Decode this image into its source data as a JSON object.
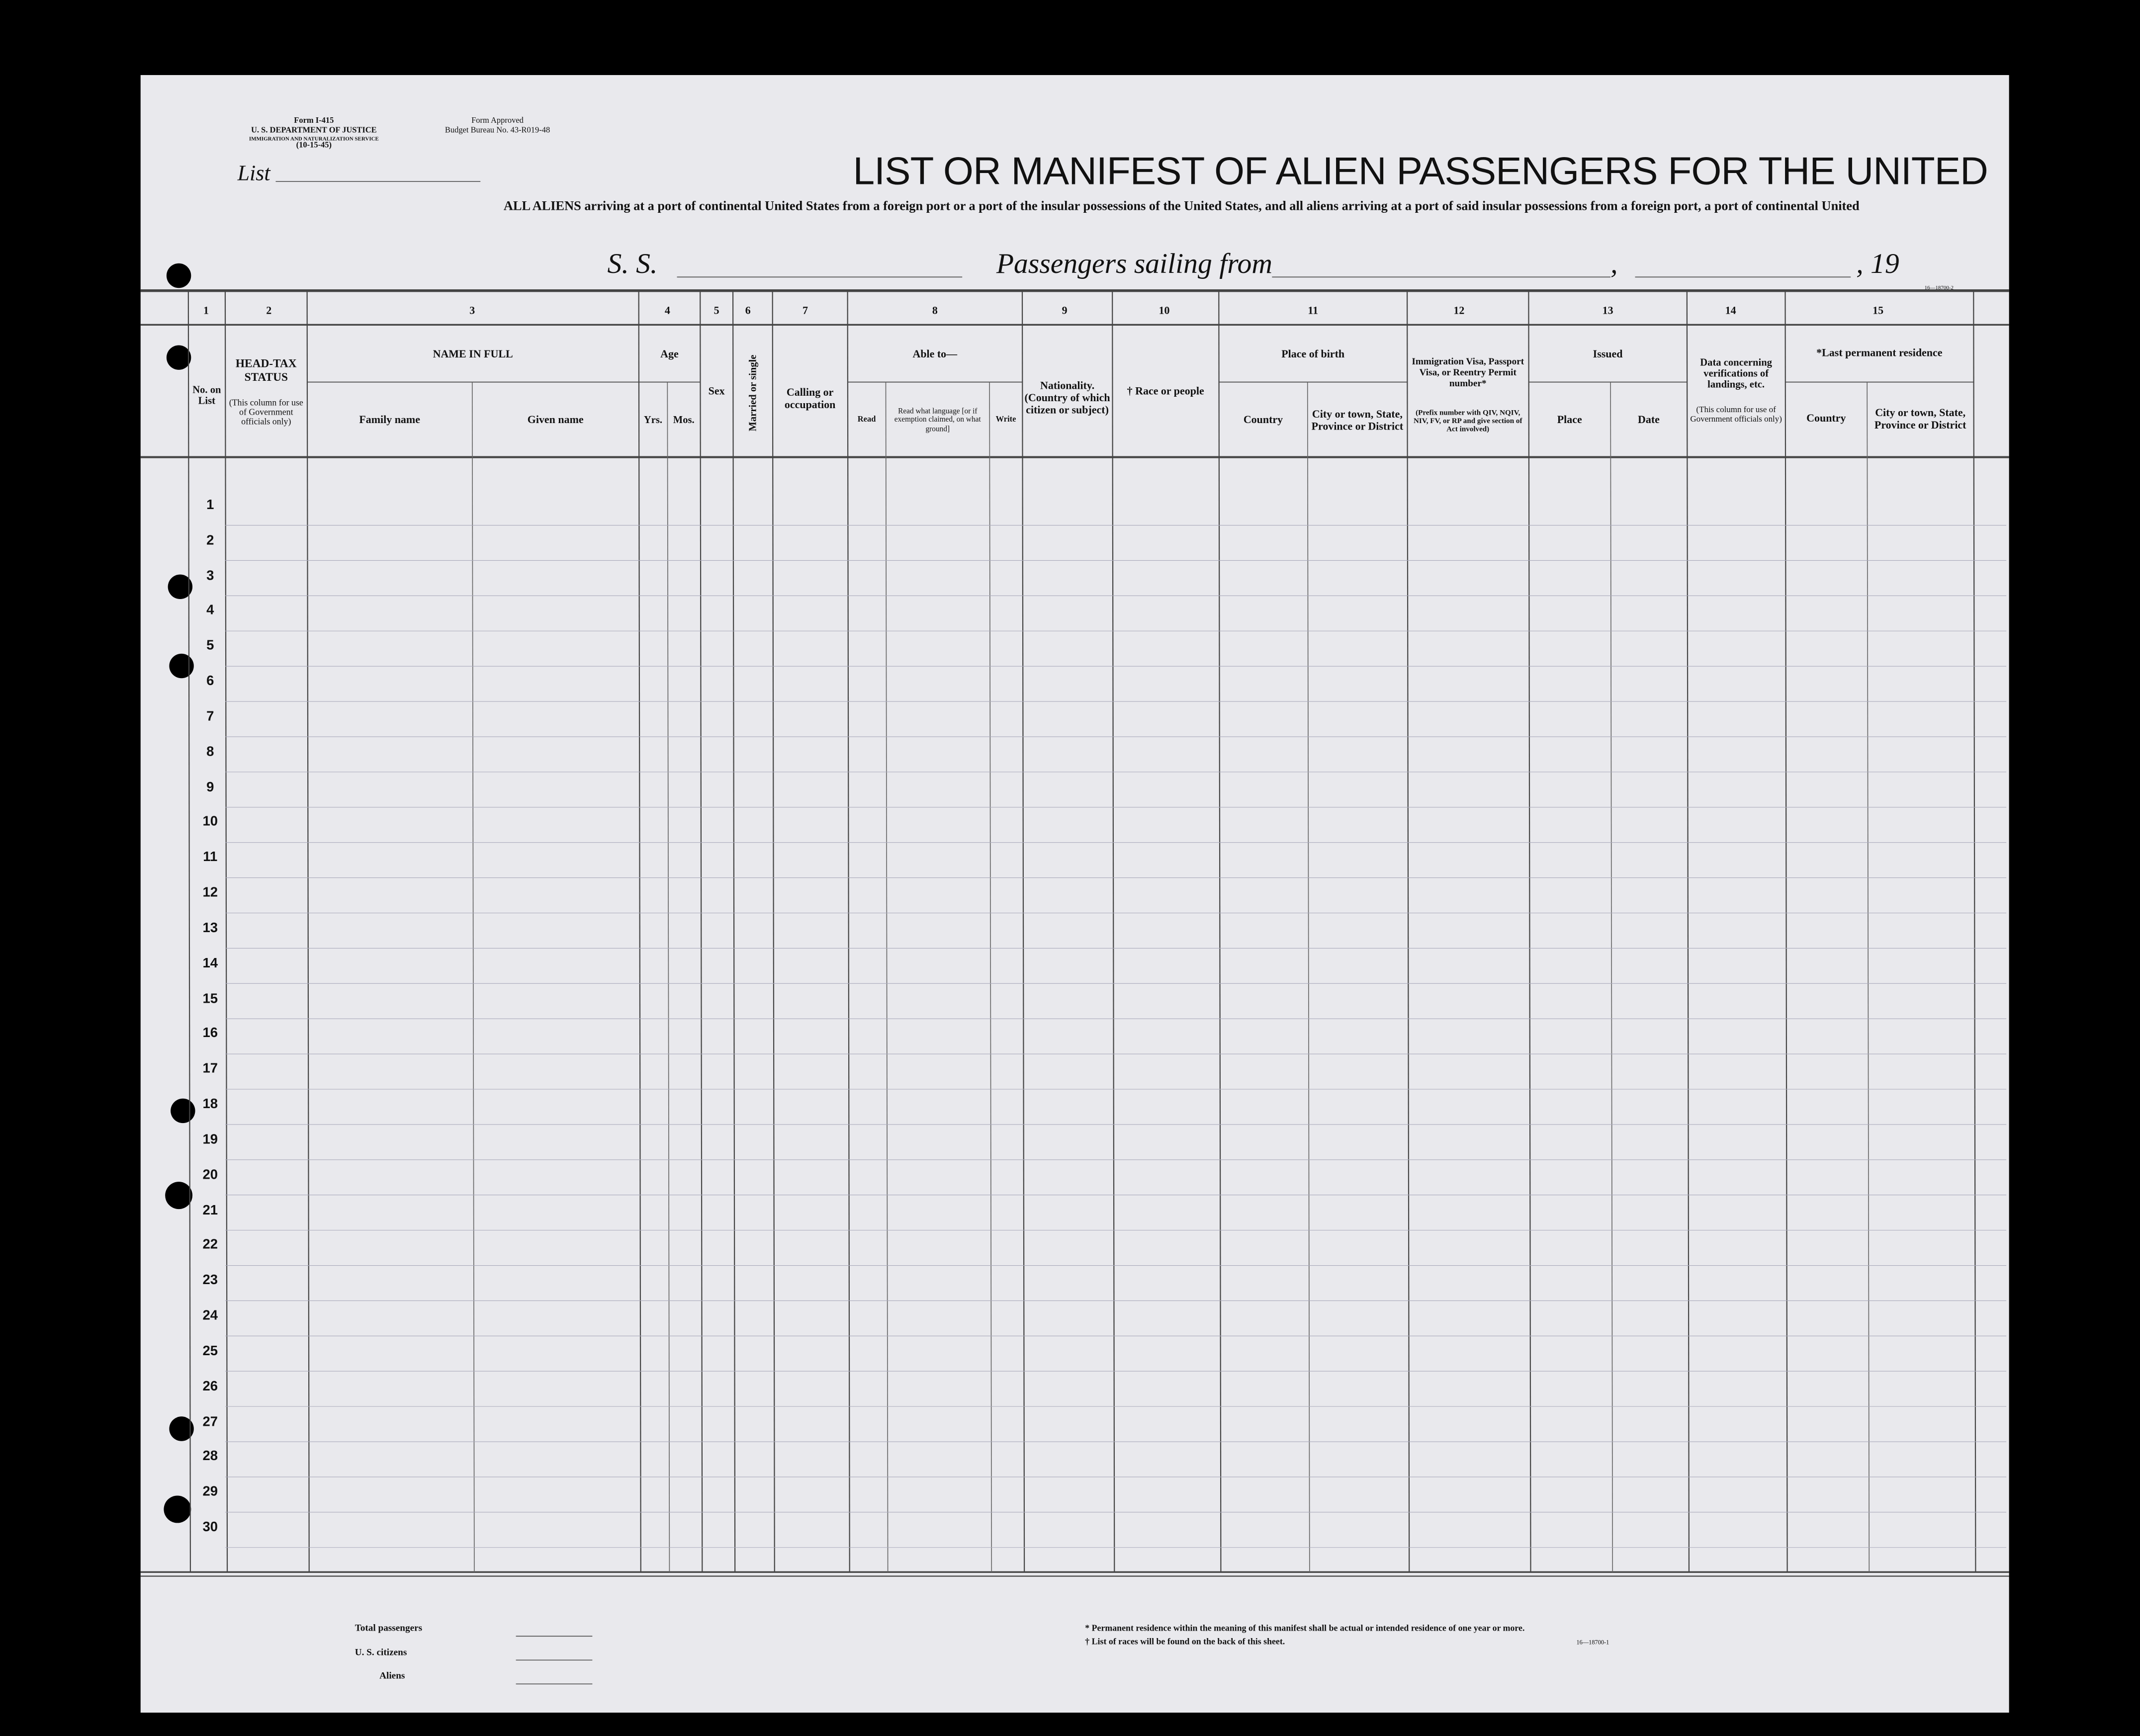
{
  "form": {
    "number": "Form I-415",
    "department": "U. S. DEPARTMENT OF JUSTICE",
    "service": "IMMIGRATION AND NATURALIZATION SERVICE",
    "date": "(10-15-45)",
    "approval": "Form Approved",
    "budget": "Budget Bureau No. 43-R019-48"
  },
  "list_label": "List",
  "title": "LIST OR MANIFEST OF ALIEN PASSENGERS FOR THE UNITED",
  "subtitle": "ALL ALIENS arriving at a port of continental United States from a foreign port or a port of the insular possessions of the United States, and all aliens arriving at a port of said insular possessions from a foreign port, a port of continental United",
  "ship_line": {
    "ss": "S. S.",
    "sailing": "Passengers sailing from",
    "comma": ",",
    "year": ", 19"
  },
  "print_code": "16—18700-2",
  "column_numbers": [
    "1",
    "2",
    "3",
    "4",
    "5",
    "6",
    "7",
    "8",
    "9",
    "10",
    "11",
    "12",
    "13",
    "14",
    "15"
  ],
  "headers": {
    "no": "No. on List",
    "head_tax": "HEAD-TAX STATUS",
    "head_tax_note": "(This column for use of Government officials only)",
    "name": "NAME IN FULL",
    "family": "Family name",
    "given": "Given name",
    "age": "Age",
    "yrs": "Yrs.",
    "mos": "Mos.",
    "sex": "Sex",
    "married": "Married or single",
    "calling": "Calling or occupation",
    "able": "Able to—",
    "read": "Read",
    "read_lang": "Read what language [or if exemption claimed, on what ground]",
    "write": "Write",
    "nationality": "Nationality. (Country of which citizen or subject)",
    "race": "† Race or people",
    "birth": "Place of birth",
    "country": "Country",
    "city": "City or town, State, Province or District",
    "visa": "Immigration Visa, Passport Visa, or Reentry Permit number*",
    "visa_note": "(Prefix number with QIV, NQIV, NIV, FV, or RP and give section of Act involved)",
    "issued": "Issued",
    "place": "Place",
    "date": "Date",
    "data": "Data concerning verifications of landings, etc.",
    "data_note": "(This column for use of Government officials only)",
    "residence": "*Last permanent residence",
    "res_country": "Country",
    "res_city": "City or town, State, Province or District"
  },
  "rows": [
    "1",
    "2",
    "3",
    "4",
    "5",
    "6",
    "7",
    "8",
    "9",
    "10",
    "11",
    "12",
    "13",
    "14",
    "15",
    "16",
    "17",
    "18",
    "19",
    "20",
    "21",
    "22",
    "23",
    "24",
    "25",
    "26",
    "27",
    "28",
    "29",
    "30"
  ],
  "totals": [
    "Total passengers",
    "U. S. citizens",
    "Aliens"
  ],
  "footnotes": [
    "* Permanent residence within the meaning of this manifest shall be actual or intended residence of one year or more.",
    "† List of races will be found on the back of this sheet."
  ],
  "footer_code": "16—18700-1"
}
